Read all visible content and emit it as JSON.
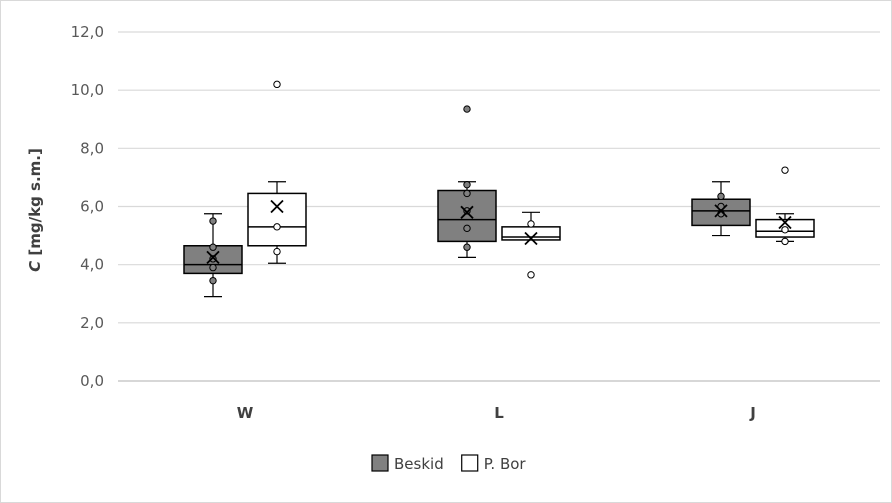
{
  "chart_data": {
    "type": "box",
    "ylabel_italic": "C",
    "ylabel_rest": " [mg/kg s.m.]",
    "ylim": [
      0,
      12
    ],
    "yticks": [
      0,
      2,
      4,
      6,
      8,
      10,
      12
    ],
    "ytick_labels": [
      "0,0",
      "2,0",
      "4,0",
      "6,0",
      "8,0",
      "10,0",
      "12,0"
    ],
    "grid": true,
    "legend_position": "bottom",
    "categories": [
      "W",
      "L",
      "J"
    ],
    "series": [
      {
        "name": "Beskid",
        "color": "#808080",
        "boxes": [
          {
            "category": "W",
            "min": 2.9,
            "q1": 3.7,
            "median": 4.0,
            "q3": 4.65,
            "max": 5.75,
            "mean": 4.25,
            "points": [
              5.5,
              4.6,
              4.2,
              3.9,
              3.45
            ],
            "outliers": []
          },
          {
            "category": "L",
            "min": 4.25,
            "q1": 4.8,
            "median": 5.55,
            "q3": 6.55,
            "max": 6.85,
            "mean": 5.8,
            "points": [
              6.75,
              6.45,
              5.85,
              5.25,
              4.6
            ],
            "outliers": [
              9.35
            ]
          },
          {
            "category": "J",
            "min": 5.0,
            "q1": 5.35,
            "median": 5.85,
            "q3": 6.25,
            "max": 6.85,
            "mean": 5.85,
            "points": [
              6.35,
              6.0,
              5.75
            ],
            "outliers": []
          }
        ]
      },
      {
        "name": "P. Bor",
        "color": "#ffffff",
        "boxes": [
          {
            "category": "W",
            "min": 4.05,
            "q1": 4.65,
            "median": 5.3,
            "q3": 6.45,
            "max": 6.85,
            "mean": 6.0,
            "points": [
              5.3,
              4.45
            ],
            "outliers": [
              10.2
            ]
          },
          {
            "category": "L",
            "min": 4.85,
            "q1": 4.85,
            "median": 4.95,
            "q3": 5.3,
            "max": 5.8,
            "mean": 4.9,
            "points": [
              5.4
            ],
            "outliers": [
              3.65
            ]
          },
          {
            "category": "J",
            "min": 4.8,
            "q1": 4.95,
            "median": 5.15,
            "q3": 5.55,
            "max": 5.75,
            "mean": 5.45,
            "points": [
              5.2,
              4.8
            ],
            "outliers": [
              7.25
            ]
          }
        ]
      }
    ]
  }
}
